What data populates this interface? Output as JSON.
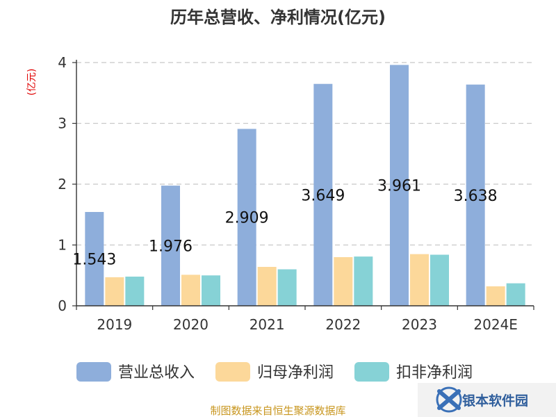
{
  "chart_data": {
    "type": "bar",
    "title": "历年总营收、净利情况(亿元)",
    "ylabel": "(亿元)",
    "xlabel": "",
    "categories": [
      "2019",
      "2020",
      "2021",
      "2022",
      "2023",
      "2024E"
    ],
    "ylim": [
      0,
      4
    ],
    "yticks": [
      0,
      1,
      2,
      3,
      4
    ],
    "grid": true,
    "legend_position": "bottom",
    "series": [
      {
        "name": "营业总收入",
        "color": "#8eaedb",
        "values": [
          1.543,
          1.976,
          2.909,
          3.649,
          3.961,
          3.638
        ],
        "labels": [
          "1.543",
          "1.976",
          "2.909",
          "3.649",
          "3.961",
          "3.638"
        ]
      },
      {
        "name": "归母净利润",
        "color": "#fcd89a",
        "values": [
          0.47,
          0.51,
          0.64,
          0.8,
          0.85,
          0.32
        ]
      },
      {
        "name": "扣非净利润",
        "color": "#86d2d6",
        "values": [
          0.48,
          0.5,
          0.6,
          0.81,
          0.84,
          0.37
        ]
      }
    ]
  },
  "source": "制图数据来自恒生聚源数据库",
  "watermark": "银本软件园"
}
